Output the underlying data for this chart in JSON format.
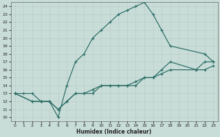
{
  "xlabel": "Humidex (Indice chaleur)",
  "background_color": "#c8ddd8",
  "line_color": "#2e6e68",
  "xlim": [
    -0.5,
    23.5
  ],
  "ylim": [
    9.5,
    24.5
  ],
  "xticks": [
    0,
    1,
    2,
    3,
    4,
    5,
    6,
    7,
    8,
    9,
    10,
    11,
    12,
    13,
    14,
    15,
    16,
    17,
    18,
    19,
    20,
    21,
    22,
    23
  ],
  "yticks": [
    10,
    11,
    12,
    13,
    14,
    15,
    16,
    17,
    18,
    19,
    20,
    21,
    22,
    23,
    24
  ],
  "series1_x": [
    0,
    1,
    2,
    3,
    4,
    5,
    6,
    7,
    8,
    9,
    10,
    11,
    12,
    13,
    14,
    15,
    16,
    17,
    18,
    22,
    23
  ],
  "series1_y": [
    13,
    13,
    13,
    12,
    12,
    10,
    14,
    17,
    18,
    20,
    21,
    22,
    23,
    23.5,
    24,
    24.5,
    23,
    21,
    19,
    18,
    17
  ],
  "series2_x": [
    0,
    2,
    3,
    4,
    5,
    6,
    7,
    8,
    9,
    10,
    11,
    12,
    13,
    14,
    15,
    16,
    17,
    18,
    21,
    22,
    23
  ],
  "series2_y": [
    13,
    12,
    12,
    12,
    11,
    12,
    13,
    13,
    13,
    14,
    14,
    14,
    14,
    14,
    15,
    15,
    16,
    17,
    16,
    17,
    17
  ],
  "series3_x": [
    0,
    2,
    3,
    4,
    5,
    6,
    7,
    8,
    9,
    10,
    11,
    12,
    13,
    14,
    15,
    16,
    17,
    18,
    21,
    22,
    23
  ],
  "series3_y": [
    13,
    12,
    12,
    12,
    11,
    12,
    13,
    13,
    13.5,
    14,
    14,
    14,
    14,
    14.5,
    15,
    15,
    15.5,
    16,
    16,
    16,
    16.5
  ]
}
